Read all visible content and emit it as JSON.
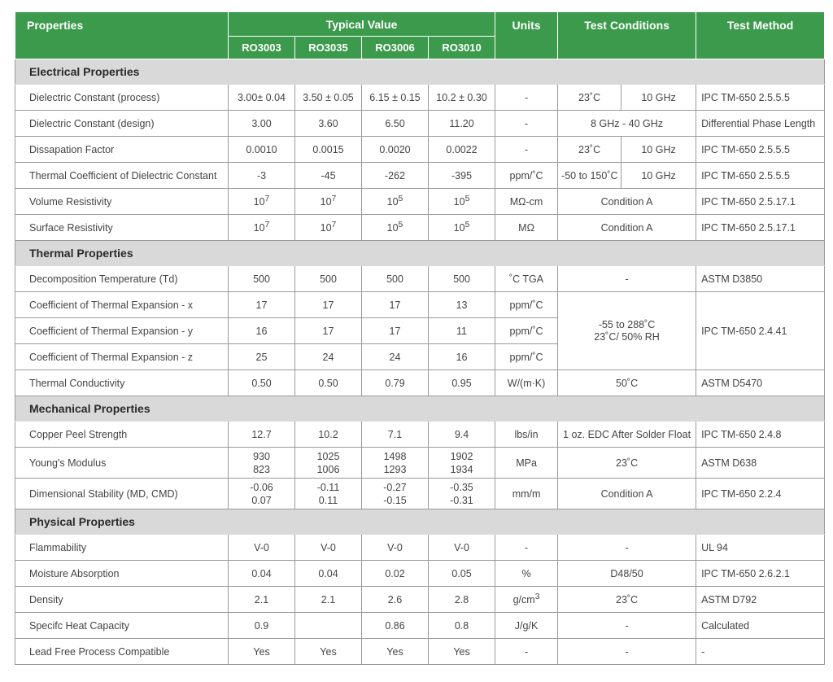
{
  "header": {
    "properties": "Properties",
    "typical_value": "Typical Value",
    "units": "Units",
    "test_conditions": "Test Conditions",
    "test_method": "Test Method",
    "materials": [
      "RO3003",
      "RO3035",
      "RO3006",
      "RO3010"
    ]
  },
  "sections": {
    "electrical": "Electrical Properties",
    "thermal": "Thermal Properties",
    "mechanical": "Mechanical Properties",
    "physical": "Physical Properties"
  },
  "rows": {
    "dk_process": {
      "name": "Dielectric Constant (process)",
      "v": [
        "3.00± 0.04",
        "3.50 ± 0.05",
        "6.15 ± 0.15",
        "10.2 ± 0.30"
      ],
      "unit": "-",
      "tc1": "23˚C",
      "tc2": "10 GHz",
      "method": "IPC TM-650 2.5.5.5"
    },
    "dk_design": {
      "name": "Dielectric Constant (design)",
      "v": [
        "3.00",
        "3.60",
        "6.50",
        "11.20"
      ],
      "unit": "-",
      "tc": "8 GHz - 40 GHz",
      "method": "Differential Phase Length"
    },
    "df": {
      "name": "Dissapation Factor",
      "v": [
        "0.0010",
        "0.0015",
        "0.0020",
        "0.0022"
      ],
      "unit": "-",
      "tc1": "23˚C",
      "tc2": "10 GHz",
      "method": "IPC TM-650 2.5.5.5"
    },
    "tcdk": {
      "name": "Thermal Coefficient of Dielectric Constant",
      "v": [
        "-3",
        "-45",
        "-262",
        "-395"
      ],
      "unit": "ppm/˚C",
      "tc1": "-50 to 150˚C",
      "tc2": "10 GHz",
      "method": "IPC TM-650 2.5.5.5"
    },
    "vol_res": {
      "name": "Volume Resistivity",
      "base": "10",
      "exp": [
        "7",
        "7",
        "5",
        "5"
      ],
      "unit": "MΩ-cm",
      "tc": "Condition A",
      "method": "IPC TM-650 2.5.17.1"
    },
    "surf_res": {
      "name": "Surface Resistivity",
      "base": "10",
      "exp": [
        "7",
        "7",
        "5",
        "5"
      ],
      "unit": "MΩ",
      "tc": "Condition A",
      "method": "IPC TM-650 2.5.17.1"
    },
    "td": {
      "name": "Decomposition Temperature (Td)",
      "v": [
        "500",
        "500",
        "500",
        "500"
      ],
      "unit": "˚C TGA",
      "tc": "-",
      "method": "ASTM D3850"
    },
    "cte_x": {
      "name": "Coefficient of Thermal Expansion - x",
      "v": [
        "17",
        "17",
        "17",
        "13"
      ],
      "unit": "ppm/˚C"
    },
    "cte_y": {
      "name": "Coefficient of Thermal Expansion - y",
      "v": [
        "16",
        "17",
        "17",
        "11"
      ],
      "unit": "ppm/˚C"
    },
    "cte_z": {
      "name": "Coefficient of Thermal Expansion - z",
      "v": [
        "25",
        "24",
        "24",
        "16"
      ],
      "unit": "ppm/˚C"
    },
    "cte_tc_line1": "-55 to 288˚C",
    "cte_tc_line2": "23˚C/ 50% RH",
    "cte_method": "IPC TM-650 2.4.41",
    "tcond": {
      "name": "Thermal Conductivity",
      "v": [
        "0.50",
        "0.50",
        "0.79",
        "0.95"
      ],
      "unit": "W/(m·K)",
      "tc": "50˚C",
      "method": "ASTM D5470"
    },
    "peel": {
      "name": "Copper Peel Strength",
      "v": [
        "12.7",
        "10.2",
        "7.1",
        "9.4"
      ],
      "unit": "lbs/in",
      "tc": "1 oz. EDC After Solder  Float",
      "method": "IPC TM-650 2.4.8"
    },
    "youngs": {
      "name": "Young's Modulus",
      "v1": [
        "930",
        "1025",
        "1498",
        "1902"
      ],
      "v2": [
        "823",
        "1006",
        "1293",
        "1934"
      ],
      "unit": "MPa",
      "tc": "23˚C",
      "method": "ASTM D638"
    },
    "dimstab": {
      "name": "Dimensional Stability (MD, CMD)",
      "v1": [
        "-0.06",
        "-0.11",
        "-0.27",
        "-0.35"
      ],
      "v2": [
        "0.07",
        "0.11",
        "-0.15",
        "-0.31"
      ],
      "unit": "mm/m",
      "tc": "Condition A",
      "method": "IPC TM-650 2.2.4"
    },
    "flam": {
      "name": "Flammability",
      "v": [
        "V-0",
        "V-0",
        "V-0",
        "V-0"
      ],
      "unit": "-",
      "tc": "-",
      "method": "UL 94"
    },
    "moist": {
      "name": "Moisture Absorption",
      "v": [
        "0.04",
        "0.04",
        "0.02",
        "0.05"
      ],
      "unit": "%",
      "tc": "D48/50",
      "method": "IPC TM-650 2.6.2.1"
    },
    "density": {
      "name": "Density",
      "v": [
        "2.1",
        "2.1",
        "2.6",
        "2.8"
      ],
      "unit_base": "g/cm",
      "unit_exp": "3",
      "tc": "23˚C",
      "method": "ASTM D792"
    },
    "heatcap": {
      "name": "Specifc Heat Capacity",
      "v": [
        "0.9",
        "",
        "0.86",
        "0.8"
      ],
      "unit": "J/g/K",
      "tc": "-",
      "method": "Calculated"
    },
    "leadfree": {
      "name": "Lead Free Process Compatible",
      "v": [
        "Yes",
        "Yes",
        "Yes",
        "Yes"
      ],
      "unit": "-",
      "tc": "-",
      "method": "-"
    }
  }
}
